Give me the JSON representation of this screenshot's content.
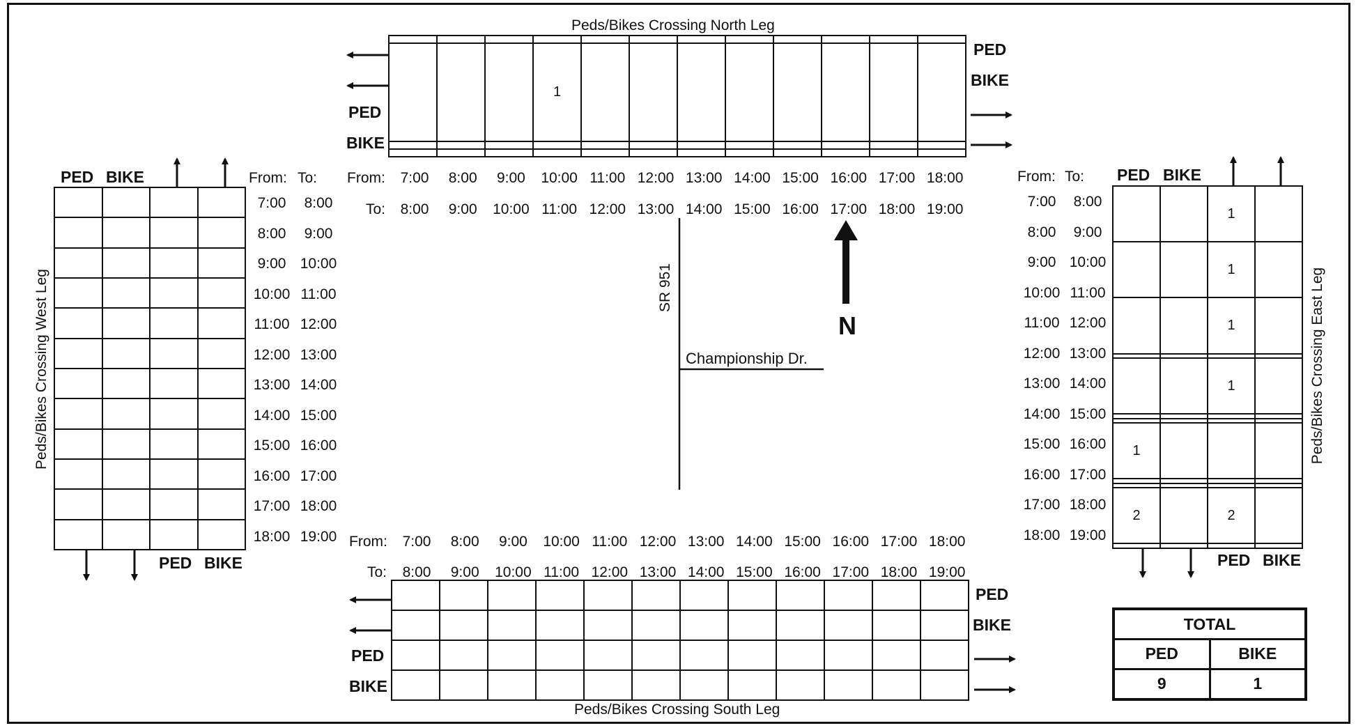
{
  "north": {
    "title": "Peds/Bikes Crossing North Leg",
    "rows": [
      [
        "",
        "",
        "",
        "",
        "",
        "",
        "",
        "",
        "",
        "",
        "",
        ""
      ],
      [
        "",
        "",
        "",
        "1",
        "",
        "",
        "",
        "",
        "",
        "",
        "",
        ""
      ],
      [
        "",
        "",
        "",
        "",
        "",
        "",
        "",
        "",
        "",
        "",
        "",
        ""
      ],
      [
        "",
        "",
        "",
        "",
        "",
        "",
        "",
        "",
        "",
        "",
        "",
        ""
      ]
    ],
    "right_labels": [
      "PED",
      "BIKE"
    ],
    "left_labels": [
      "PED",
      "BIKE"
    ]
  },
  "south": {
    "title": "Peds/Bikes Crossing South Leg",
    "rows": [
      [
        "",
        "",
        "",
        "",
        "",
        "",
        "",
        "",
        "",
        "",
        "",
        ""
      ],
      [
        "",
        "",
        "",
        "",
        "",
        "",
        "",
        "",
        "",
        "",
        "",
        ""
      ],
      [
        "",
        "",
        "",
        "",
        "",
        "",
        "",
        "",
        "",
        "",
        "",
        ""
      ],
      [
        "",
        "",
        "",
        "",
        "",
        "",
        "",
        "",
        "",
        "",
        "",
        ""
      ]
    ],
    "right_labels": [
      "PED",
      "BIKE"
    ],
    "left_labels": [
      "PED",
      "BIKE"
    ]
  },
  "west": {
    "title": "Peds/Bikes Crossing West Leg",
    "top_labels": [
      "PED",
      "BIKE"
    ],
    "bottom_labels": [
      "PED",
      "BIKE"
    ],
    "rows": [
      [
        "",
        "",
        "",
        ""
      ],
      [
        "",
        "",
        "",
        ""
      ],
      [
        "",
        "",
        "",
        ""
      ],
      [
        "",
        "",
        "",
        ""
      ],
      [
        "",
        "",
        "",
        ""
      ],
      [
        "",
        "",
        "",
        ""
      ],
      [
        "",
        "",
        "",
        ""
      ],
      [
        "",
        "",
        "",
        ""
      ],
      [
        "",
        "",
        "",
        ""
      ],
      [
        "",
        "",
        "",
        ""
      ],
      [
        "",
        "",
        "",
        ""
      ],
      [
        "",
        "",
        "",
        ""
      ]
    ]
  },
  "east": {
    "title": "Peds/Bikes Crossing East Leg",
    "top_labels": [
      "PED",
      "BIKE"
    ],
    "bottom_labels": [
      "PED",
      "BIKE"
    ],
    "rows": [
      [
        "",
        "",
        "1",
        ""
      ],
      [
        "",
        "",
        "1",
        ""
      ],
      [
        "",
        "",
        "1",
        ""
      ],
      [
        "",
        "",
        "",
        ""
      ],
      [
        "",
        "",
        "1",
        ""
      ],
      [
        "",
        "",
        "",
        ""
      ],
      [
        "",
        "",
        "",
        ""
      ],
      [
        "1",
        "",
        "",
        ""
      ],
      [
        "",
        "",
        "",
        ""
      ],
      [
        "",
        "",
        "",
        ""
      ],
      [
        "2",
        "",
        "2",
        ""
      ],
      [
        "",
        "",
        "",
        ""
      ]
    ]
  },
  "time_labels": {
    "from": "From:",
    "to": "To:"
  },
  "times_from": [
    "7:00",
    "8:00",
    "9:00",
    "10:00",
    "11:00",
    "12:00",
    "13:00",
    "14:00",
    "15:00",
    "16:00",
    "17:00",
    "18:00"
  ],
  "times_to": [
    "8:00",
    "9:00",
    "10:00",
    "11:00",
    "12:00",
    "13:00",
    "14:00",
    "15:00",
    "16:00",
    "17:00",
    "18:00",
    "19:00"
  ],
  "map": {
    "major_street": "SR 951",
    "minor_street": "Championship Dr.",
    "north": "N"
  },
  "totals": {
    "header": "TOTAL",
    "ped_label": "PED",
    "bike_label": "BIKE",
    "ped": "9",
    "bike": "1"
  }
}
